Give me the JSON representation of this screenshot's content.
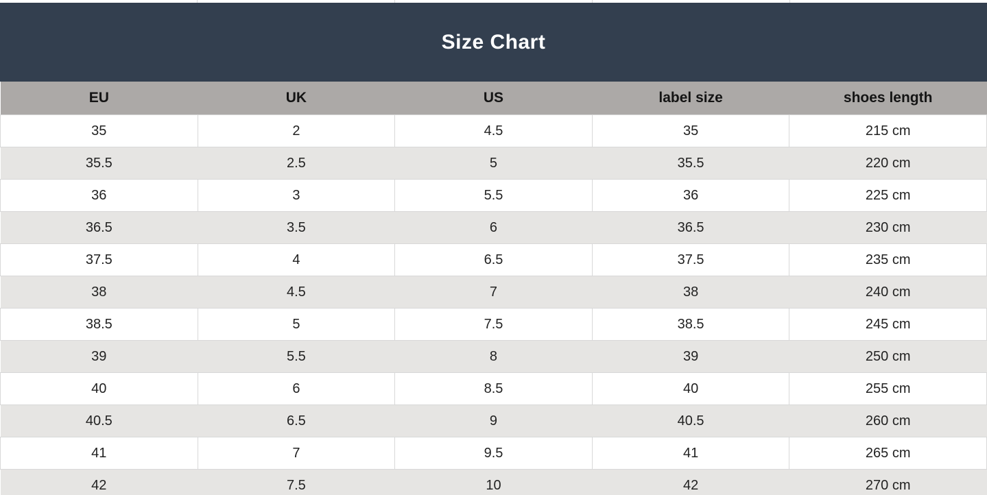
{
  "title": "Size Chart",
  "colors": {
    "title_bg": "#333f4f",
    "title_text": "#ffffff",
    "header_bg": "#aca9a7",
    "header_text": "#141414",
    "row_bg": "#ffffff",
    "row_alt_bg": "#e6e5e3",
    "cell_border": "#d8d8d8",
    "cell_text": "#222222"
  },
  "chart_data": {
    "type": "table",
    "title": "Size Chart",
    "columns": [
      "EU",
      "UK",
      "US",
      "label size",
      "shoes length"
    ],
    "rows": [
      [
        "35",
        "2",
        "4.5",
        "35",
        "215 cm"
      ],
      [
        "35.5",
        "2.5",
        "5",
        "35.5",
        "220 cm"
      ],
      [
        "36",
        "3",
        "5.5",
        "36",
        "225 cm"
      ],
      [
        "36.5",
        "3.5",
        "6",
        "36.5",
        "230 cm"
      ],
      [
        "37.5",
        "4",
        "6.5",
        "37.5",
        "235 cm"
      ],
      [
        "38",
        "4.5",
        "7",
        "38",
        "240 cm"
      ],
      [
        "38.5",
        "5",
        "7.5",
        "38.5",
        "245 cm"
      ],
      [
        "39",
        "5.5",
        "8",
        "39",
        "250 cm"
      ],
      [
        "40",
        "6",
        "8.5",
        "40",
        "255 cm"
      ],
      [
        "40.5",
        "6.5",
        "9",
        "40.5",
        "260 cm"
      ],
      [
        "41",
        "7",
        "9.5",
        "41",
        "265 cm"
      ],
      [
        "42",
        "7.5",
        "10",
        "42",
        "270 cm"
      ]
    ]
  }
}
